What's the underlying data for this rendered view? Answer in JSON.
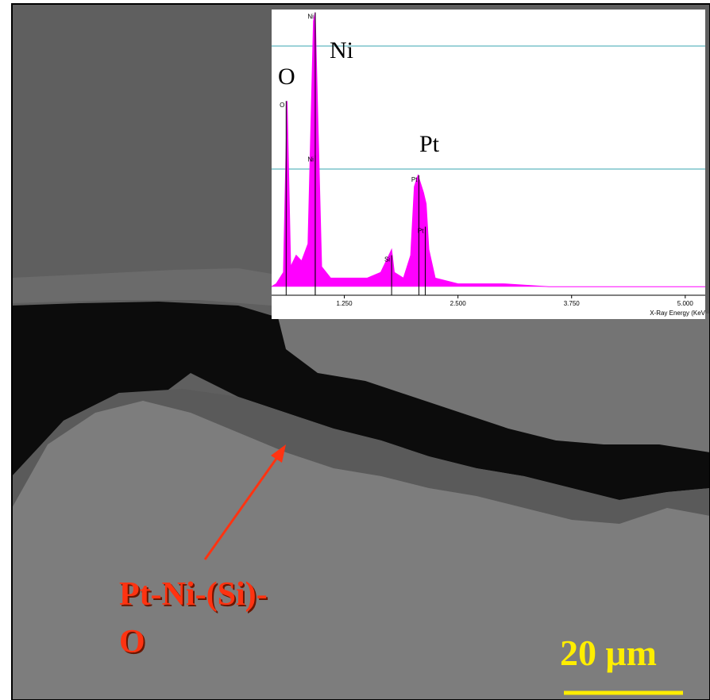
{
  "image": {
    "annotation": {
      "lines": [
        "Pt-Ni-(Si)-",
        "O"
      ]
    },
    "scale_bar": {
      "label": "20 μm"
    }
  },
  "chart_data": {
    "type": "area",
    "color": "#ff00ff",
    "x": [
      0.45,
      0.5,
      0.58,
      0.62,
      0.66,
      0.72,
      0.78,
      0.85,
      0.91,
      0.93,
      0.96,
      1.0,
      1.1,
      1.25,
      1.5,
      1.65,
      1.74,
      1.77,
      1.8,
      1.9,
      1.98,
      2.02,
      2.06,
      2.08,
      2.12,
      2.15,
      2.18,
      2.25,
      2.5,
      3.0,
      3.5,
      4.0,
      4.5,
      5.0,
      5.22
    ],
    "values": [
      3,
      4,
      8,
      68,
      10,
      14,
      12,
      18,
      96,
      99,
      60,
      10,
      6,
      6,
      6,
      8,
      14,
      16,
      8,
      6,
      14,
      38,
      42,
      40,
      36,
      32,
      16,
      6,
      4,
      4,
      3,
      3,
      3,
      3,
      3
    ],
    "xlim": [
      0.45,
      5.22
    ],
    "ylim": [
      0,
      100
    ],
    "xticks": [
      {
        "value": 1.25,
        "label": "1.250"
      },
      {
        "value": 2.5,
        "label": "2.500"
      },
      {
        "value": 3.75,
        "label": "3.750"
      },
      {
        "value": 5.0,
        "label": "5.000"
      }
    ],
    "x_label": "X-Ray Energy (KeV",
    "markers": [
      {
        "label": "O",
        "x": 0.61,
        "y": 68
      },
      {
        "label": "Ni",
        "x": 0.93,
        "y": 99
      },
      {
        "label": "Ni",
        "x": 0.93,
        "y": 49
      },
      {
        "label": "Si",
        "x": 1.77,
        "y": 14
      },
      {
        "label": "Pt",
        "x": 2.07,
        "y": 42
      },
      {
        "label": "Pt",
        "x": 2.14,
        "y": 24
      }
    ],
    "element_labels": [
      "O",
      "Ni",
      "Pt"
    ]
  }
}
